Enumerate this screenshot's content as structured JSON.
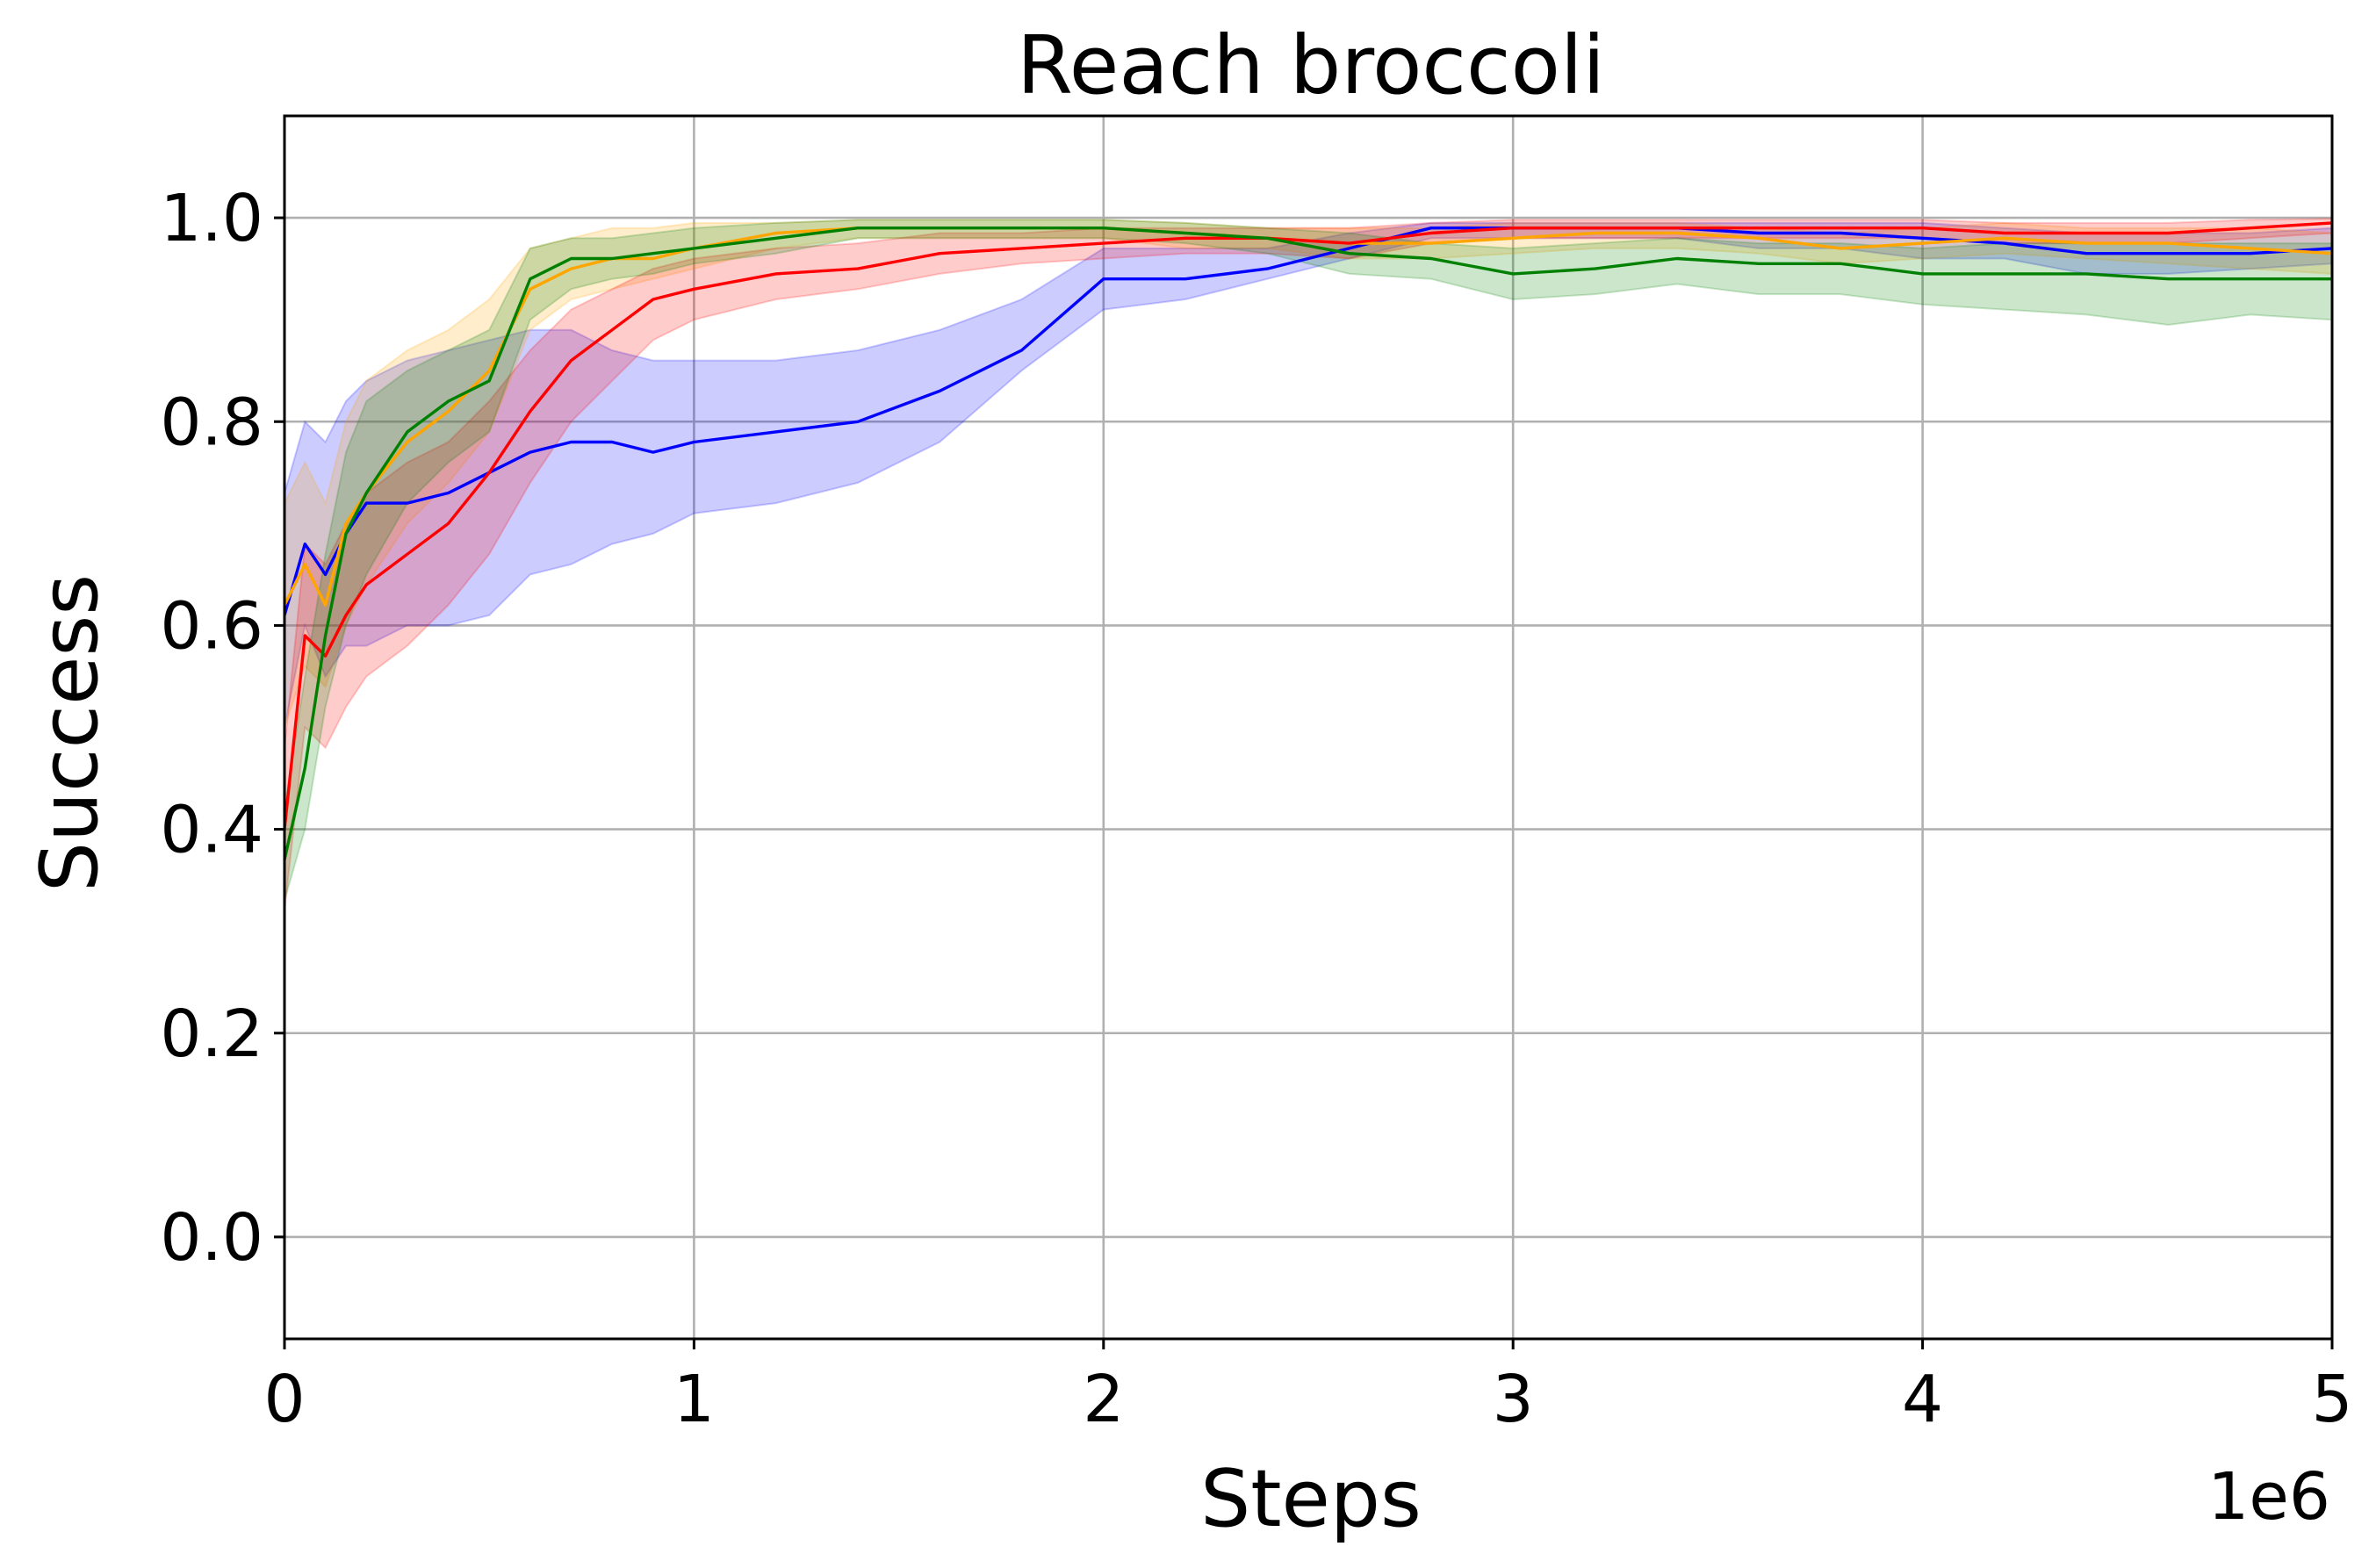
{
  "chart_data": {
    "type": "line",
    "title": "Reach broccoli",
    "xlabel": "Steps",
    "ylabel": "Success",
    "x_offset_label": "1e6",
    "xlim": [
      0,
      5
    ],
    "ylim": [
      -0.1,
      1.1
    ],
    "x_ticks": [
      0,
      1,
      2,
      3,
      4,
      5
    ],
    "x_tick_labels": [
      "0",
      "1",
      "2",
      "3",
      "4",
      "5"
    ],
    "y_ticks": [
      0.0,
      0.2,
      0.4,
      0.6,
      0.8,
      1.0
    ],
    "y_tick_labels": [
      "0.0",
      "0.2",
      "0.4",
      "0.6",
      "0.8",
      "1.0"
    ],
    "grid": true,
    "legend": "none",
    "x": [
      0,
      0.05,
      0.1,
      0.15,
      0.2,
      0.3,
      0.4,
      0.5,
      0.6,
      0.7,
      0.8,
      0.9,
      1.0,
      1.2,
      1.4,
      1.6,
      1.8,
      2.0,
      2.2,
      2.4,
      2.6,
      2.8,
      3.0,
      3.2,
      3.4,
      3.6,
      3.8,
      4.0,
      4.2,
      4.4,
      4.6,
      4.8,
      5.0
    ],
    "series": [
      {
        "color": "#0000ff",
        "values": [
          0.61,
          0.68,
          0.65,
          0.69,
          0.72,
          0.72,
          0.73,
          0.75,
          0.77,
          0.78,
          0.78,
          0.77,
          0.78,
          0.79,
          0.8,
          0.83,
          0.87,
          0.94,
          0.94,
          0.95,
          0.97,
          0.99,
          0.99,
          0.99,
          0.99,
          0.985,
          0.985,
          0.98,
          0.975,
          0.965,
          0.965,
          0.965,
          0.97
        ],
        "lower": [
          0.5,
          0.6,
          0.55,
          0.58,
          0.58,
          0.6,
          0.6,
          0.61,
          0.65,
          0.66,
          0.68,
          0.69,
          0.71,
          0.72,
          0.74,
          0.78,
          0.85,
          0.91,
          0.92,
          0.94,
          0.96,
          0.98,
          0.98,
          0.98,
          0.98,
          0.97,
          0.97,
          0.96,
          0.96,
          0.945,
          0.945,
          0.95,
          0.955
        ],
        "upper": [
          0.73,
          0.8,
          0.78,
          0.82,
          0.84,
          0.86,
          0.87,
          0.88,
          0.89,
          0.89,
          0.87,
          0.86,
          0.86,
          0.86,
          0.87,
          0.89,
          0.92,
          0.97,
          0.97,
          0.97,
          0.985,
          0.995,
          0.995,
          0.995,
          0.995,
          0.995,
          0.995,
          0.995,
          0.99,
          0.985,
          0.985,
          0.985,
          0.99
        ]
      },
      {
        "color": "#ffa500",
        "values": [
          0.62,
          0.66,
          0.62,
          0.7,
          0.73,
          0.78,
          0.81,
          0.85,
          0.93,
          0.95,
          0.96,
          0.96,
          0.97,
          0.985,
          0.99,
          0.99,
          0.99,
          0.99,
          0.985,
          0.98,
          0.975,
          0.975,
          0.98,
          0.985,
          0.985,
          0.98,
          0.97,
          0.975,
          0.98,
          0.975,
          0.975,
          0.97,
          0.965
        ],
        "lower": [
          0.5,
          0.56,
          0.54,
          0.6,
          0.64,
          0.7,
          0.74,
          0.79,
          0.89,
          0.92,
          0.93,
          0.94,
          0.95,
          0.97,
          0.98,
          0.98,
          0.98,
          0.98,
          0.97,
          0.97,
          0.96,
          0.96,
          0.965,
          0.97,
          0.97,
          0.965,
          0.955,
          0.96,
          0.965,
          0.96,
          0.955,
          0.95,
          0.945
        ],
        "upper": [
          0.72,
          0.76,
          0.72,
          0.8,
          0.84,
          0.87,
          0.89,
          0.92,
          0.97,
          0.98,
          0.99,
          0.99,
          0.995,
          0.995,
          0.998,
          0.998,
          0.998,
          0.998,
          0.995,
          0.99,
          0.99,
          0.99,
          0.995,
          0.995,
          0.995,
          0.99,
          0.985,
          0.99,
          0.995,
          0.99,
          0.99,
          0.99,
          0.985
        ]
      },
      {
        "color": "#ff0000",
        "values": [
          0.4,
          0.59,
          0.57,
          0.61,
          0.64,
          0.67,
          0.7,
          0.75,
          0.81,
          0.86,
          0.89,
          0.92,
          0.93,
          0.945,
          0.95,
          0.965,
          0.97,
          0.975,
          0.98,
          0.98,
          0.975,
          0.985,
          0.99,
          0.99,
          0.99,
          0.99,
          0.99,
          0.99,
          0.985,
          0.985,
          0.985,
          0.99,
          0.995
        ],
        "lower": [
          0.32,
          0.5,
          0.48,
          0.52,
          0.55,
          0.58,
          0.62,
          0.67,
          0.74,
          0.8,
          0.84,
          0.88,
          0.9,
          0.92,
          0.93,
          0.945,
          0.955,
          0.96,
          0.965,
          0.965,
          0.96,
          0.975,
          0.98,
          0.98,
          0.98,
          0.98,
          0.98,
          0.98,
          0.975,
          0.975,
          0.975,
          0.98,
          0.985
        ],
        "upper": [
          0.48,
          0.68,
          0.66,
          0.7,
          0.73,
          0.76,
          0.78,
          0.82,
          0.87,
          0.91,
          0.93,
          0.95,
          0.96,
          0.97,
          0.975,
          0.985,
          0.985,
          0.99,
          0.99,
          0.99,
          0.99,
          0.995,
          0.998,
          0.998,
          0.998,
          0.998,
          0.998,
          0.998,
          0.995,
          0.995,
          0.995,
          0.998,
          0.999
        ]
      },
      {
        "color": "#008000",
        "values": [
          0.37,
          0.46,
          0.59,
          0.69,
          0.73,
          0.79,
          0.82,
          0.84,
          0.94,
          0.96,
          0.96,
          0.965,
          0.97,
          0.98,
          0.99,
          0.99,
          0.99,
          0.99,
          0.985,
          0.98,
          0.965,
          0.96,
          0.945,
          0.95,
          0.96,
          0.955,
          0.955,
          0.945,
          0.945,
          0.945,
          0.94,
          0.94,
          0.94
        ],
        "lower": [
          0.33,
          0.4,
          0.52,
          0.6,
          0.65,
          0.72,
          0.76,
          0.79,
          0.9,
          0.93,
          0.94,
          0.945,
          0.955,
          0.965,
          0.98,
          0.98,
          0.98,
          0.98,
          0.975,
          0.965,
          0.945,
          0.94,
          0.92,
          0.925,
          0.935,
          0.925,
          0.925,
          0.915,
          0.91,
          0.905,
          0.895,
          0.905,
          0.9
        ],
        "upper": [
          0.42,
          0.55,
          0.67,
          0.77,
          0.82,
          0.85,
          0.87,
          0.89,
          0.97,
          0.98,
          0.98,
          0.985,
          0.99,
          0.995,
          0.998,
          0.998,
          0.998,
          0.998,
          0.995,
          0.99,
          0.985,
          0.975,
          0.97,
          0.975,
          0.98,
          0.975,
          0.975,
          0.97,
          0.975,
          0.975,
          0.975,
          0.975,
          0.975
        ]
      }
    ]
  }
}
